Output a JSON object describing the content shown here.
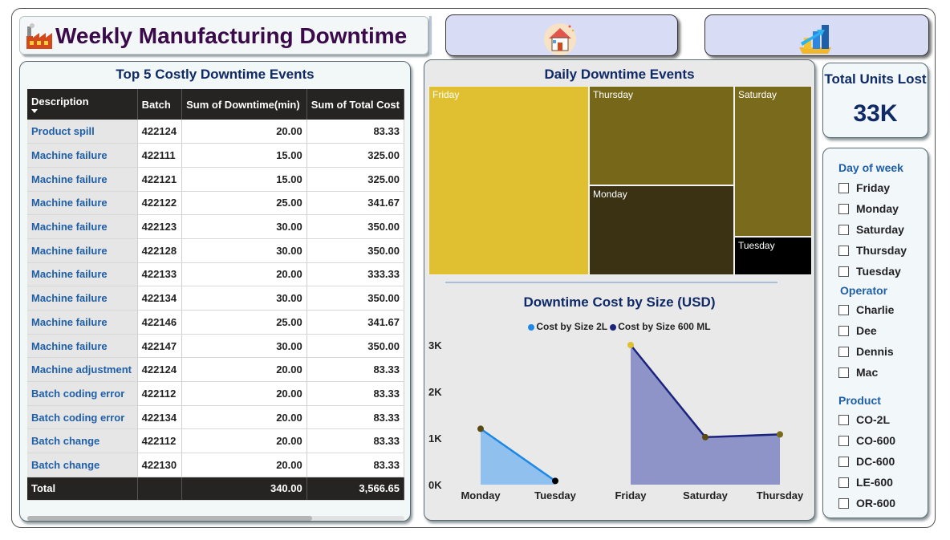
{
  "header": {
    "title": "Weekly Manufacturing Downtime",
    "nav": [
      {
        "icon": "home-icon",
        "name": "home"
      },
      {
        "icon": "bar-chart-icon",
        "name": "charts"
      }
    ]
  },
  "table": {
    "title": "Top 5 Costly Downtime Events",
    "columns": [
      "Description",
      "Batch",
      "Sum of Downtime(min)",
      "Sum of Total Cost"
    ],
    "rows": [
      [
        "Product spill",
        "422124",
        "20.00",
        "83.33"
      ],
      [
        "Machine failure",
        "422111",
        "15.00",
        "325.00"
      ],
      [
        "Machine failure",
        "422121",
        "15.00",
        "325.00"
      ],
      [
        "Machine failure",
        "422122",
        "25.00",
        "341.67"
      ],
      [
        "Machine failure",
        "422123",
        "30.00",
        "350.00"
      ],
      [
        "Machine failure",
        "422128",
        "30.00",
        "350.00"
      ],
      [
        "Machine failure",
        "422133",
        "20.00",
        "333.33"
      ],
      [
        "Machine failure",
        "422134",
        "30.00",
        "350.00"
      ],
      [
        "Machine failure",
        "422146",
        "25.00",
        "341.67"
      ],
      [
        "Machine failure",
        "422147",
        "30.00",
        "350.00"
      ],
      [
        "Machine adjustment",
        "422124",
        "20.00",
        "83.33"
      ],
      [
        "Batch coding error",
        "422112",
        "20.00",
        "83.33"
      ],
      [
        "Batch coding error",
        "422134",
        "20.00",
        "83.33"
      ],
      [
        "Batch change",
        "422112",
        "20.00",
        "83.33"
      ],
      [
        "Batch change",
        "422130",
        "20.00",
        "83.33"
      ]
    ],
    "total": {
      "label": "Total",
      "batch": "",
      "downtime": "340.00",
      "cost": "3,566.65"
    }
  },
  "treemap": {
    "title": "Daily Downtime Events",
    "tiles": [
      {
        "label": "Friday",
        "color": "#e0c030"
      },
      {
        "label": "Thursday",
        "color": "#766818"
      },
      {
        "label": "Saturday",
        "color": "#7a6a1c"
      },
      {
        "label": "Monday",
        "color": "#3a3212"
      },
      {
        "label": "Tuesday",
        "color": "#000000"
      }
    ]
  },
  "chart_data": {
    "type": "area",
    "title": "Downtime Cost by Size (USD)",
    "y_ticks": [
      "3K",
      "2K",
      "1K",
      "0K"
    ],
    "ylim": [
      0,
      3000
    ],
    "series": [
      {
        "name": "Cost by Size 2L",
        "color": "#1e88e5",
        "fill": "#8fc0ee",
        "categories": [
          "Monday",
          "Tuesday"
        ],
        "values": [
          1200,
          80
        ]
      },
      {
        "name": "Cost by Size 600 ML",
        "color": "#1a237e",
        "fill": "#8f94c8",
        "categories": [
          "Friday",
          "Saturday",
          "Thursday"
        ],
        "values": [
          3000,
          1020,
          1080
        ]
      }
    ],
    "x_labels": [
      "Monday",
      "Tuesday",
      "Friday",
      "Saturday",
      "Thursday"
    ]
  },
  "kpi": {
    "label": "Total Units Lost",
    "value": "33K"
  },
  "slicers": {
    "day": {
      "title": "Day of week",
      "items": [
        "Friday",
        "Monday",
        "Saturday",
        "Thursday",
        "Tuesday"
      ]
    },
    "operator": {
      "title": "Operator",
      "items": [
        "Charlie",
        "Dee",
        "Dennis",
        "Mac"
      ]
    },
    "product": {
      "title": "Product",
      "items": [
        "CO-2L",
        "CO-600",
        "DC-600",
        "LE-600",
        "OR-600"
      ]
    }
  }
}
